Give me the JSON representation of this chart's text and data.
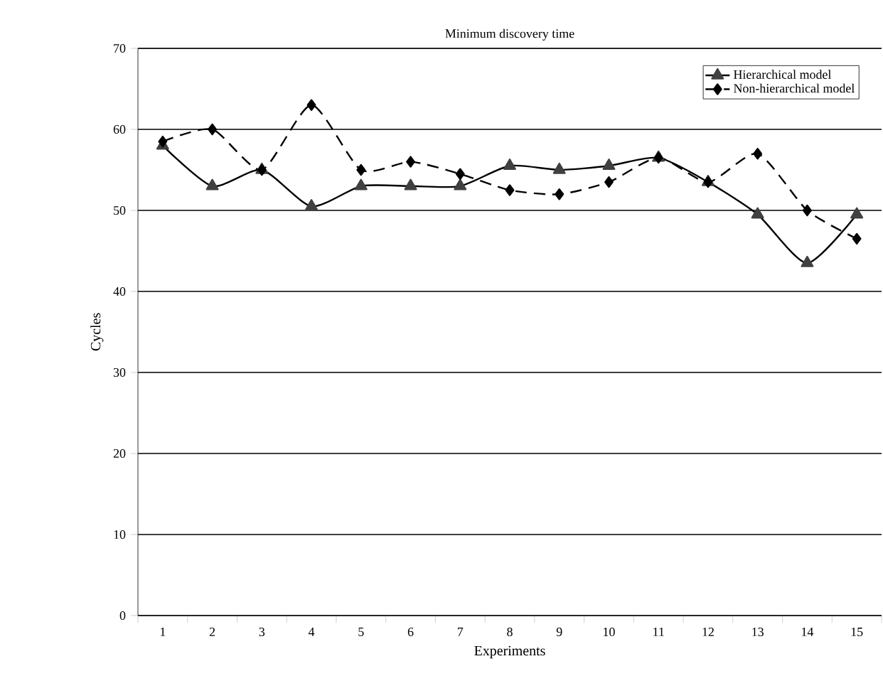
{
  "chart_data": {
    "type": "line",
    "title": "Minimum discovery time",
    "xlabel": "Experiments",
    "ylabel": "Cycles",
    "categories": [
      "1",
      "2",
      "3",
      "4",
      "5",
      "6",
      "7",
      "8",
      "9",
      "10",
      "11",
      "12",
      "13",
      "14",
      "15"
    ],
    "series": [
      {
        "name": "Non-hierarchical model",
        "color": "#000000",
        "marker": "diamond",
        "line_style": "dashed",
        "values": [
          58.5,
          60,
          55,
          63,
          55,
          56,
          54.5,
          52.5,
          52,
          53.5,
          56.5,
          53.5,
          57,
          50,
          46.5
        ]
      },
      {
        "name": "Hierarchical model",
        "color": "#404040",
        "marker": "triangle",
        "line_style": "solid",
        "values": [
          58,
          53,
          55,
          50.5,
          53,
          53,
          53,
          55.5,
          55,
          55.5,
          56.5,
          53.5,
          49.5,
          43.5,
          49.5
        ]
      }
    ],
    "ylim": [
      0,
      70
    ],
    "yticks": [
      0,
      10,
      20,
      30,
      40,
      50,
      60,
      70
    ],
    "grid": "y",
    "legend": "top right"
  }
}
